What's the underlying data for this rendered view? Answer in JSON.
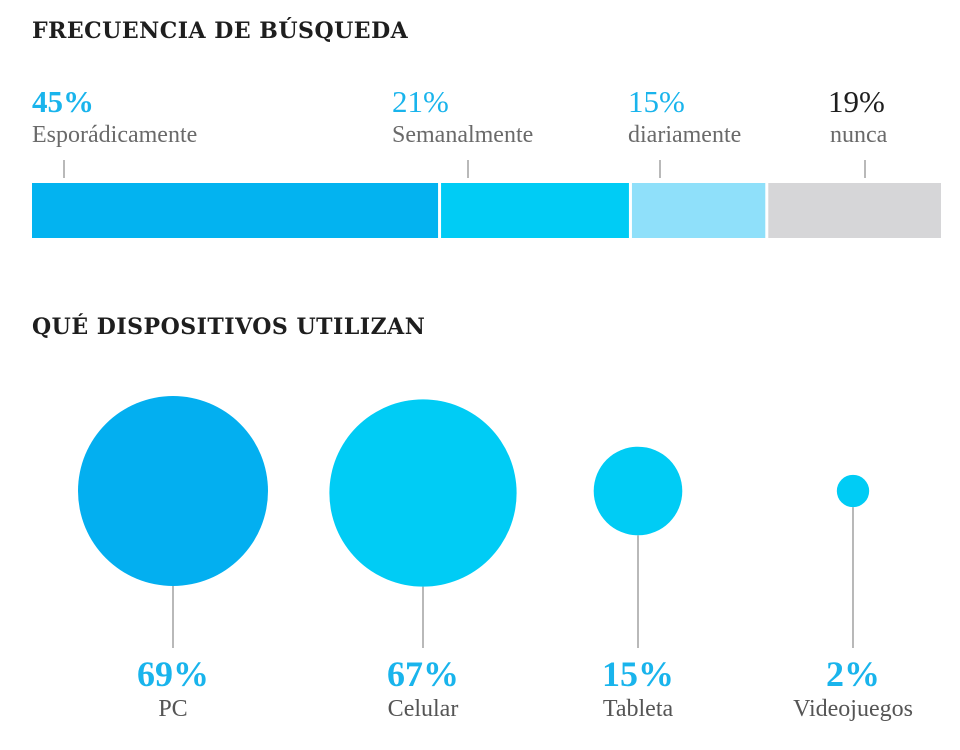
{
  "sections": {
    "frequency_title": "FRECUENCIA DE BÚSQUEDA",
    "devices_title": "QUÉ DISPOSITIVOS UTILIZAN"
  },
  "chart_data": [
    {
      "type": "bar",
      "title": "FRECUENCIA DE BÚSQUEDA",
      "stacked": true,
      "orientation": "horizontal",
      "categories": [
        "Esporádicamente",
        "Semanalmente",
        "diariamente",
        "nunca"
      ],
      "values": [
        45,
        21,
        15,
        19
      ],
      "value_labels": [
        "45%",
        "21%",
        "15%",
        "19%"
      ],
      "colors": [
        "#03b3f0",
        "#00ccf5",
        "#8fe0fa",
        "#d6d6d8"
      ],
      "label_colors": [
        "#19b4ec",
        "#19b4ec",
        "#19b4ec",
        "#1e1e1e"
      ]
    },
    {
      "type": "bubble",
      "title": "QUÉ DISPOSITIVOS UTILIZAN",
      "categories": [
        "PC",
        "Celular",
        "Tableta",
        "Videojuegos"
      ],
      "values": [
        69,
        67,
        15,
        2
      ],
      "value_labels": [
        "69%",
        "67%",
        "15%",
        "2%"
      ],
      "colors": [
        "#03aff0",
        "#00ccf5",
        "#00ccf5",
        "#00ccf5"
      ],
      "label_color": "#19b4ec"
    }
  ]
}
